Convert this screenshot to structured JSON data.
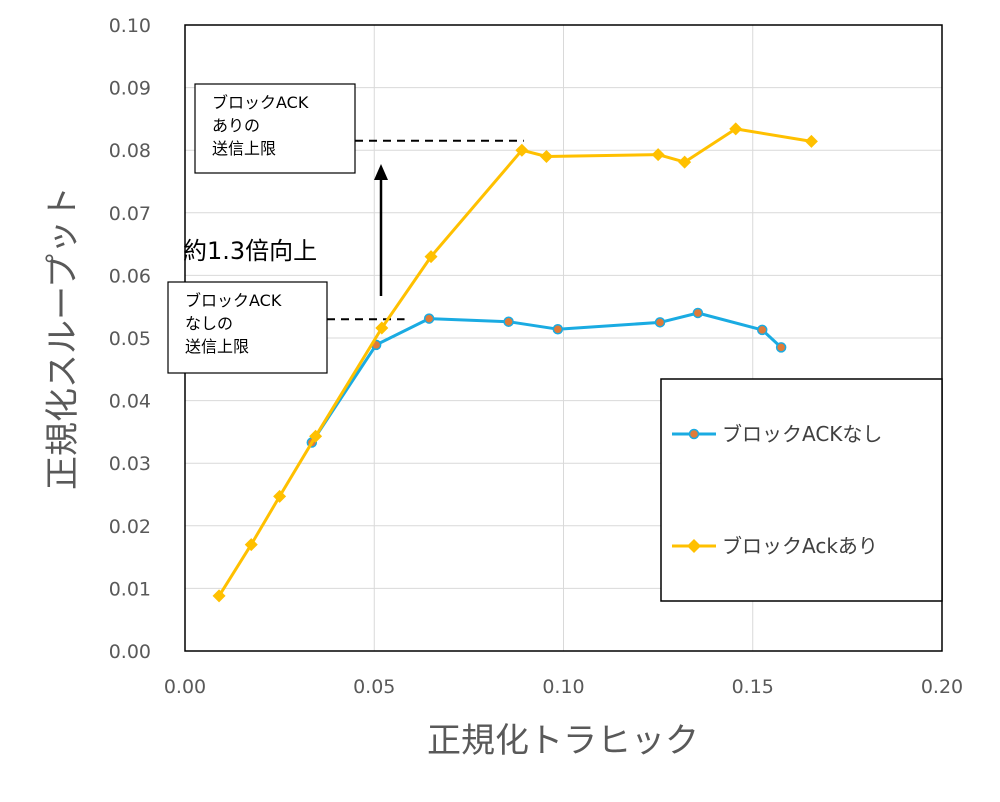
{
  "chart_data": {
    "type": "line",
    "xlabel": "正規化トラヒック",
    "ylabel": "正規化スループット",
    "xlim": [
      0,
      0.2
    ],
    "ylim": [
      0,
      0.1
    ],
    "x_ticks": [
      "0.00",
      "0.05",
      "0.10",
      "0.15",
      "0.20"
    ],
    "y_ticks": [
      "0.00",
      "0.01",
      "0.02",
      "0.03",
      "0.04",
      "0.05",
      "0.06",
      "0.07",
      "0.08",
      "0.09",
      "0.10"
    ],
    "grid": true,
    "legend_position": "right",
    "series": [
      {
        "name": "ブロックACKなし",
        "color": "#1AABE2",
        "marker_color": "#E07B39",
        "marker": "circle",
        "points": [
          [
            0.0335,
            0.0333
          ],
          [
            0.0505,
            0.0489
          ],
          [
            0.0645,
            0.0531
          ],
          [
            0.0855,
            0.0526
          ],
          [
            0.0985,
            0.0514
          ],
          [
            0.1255,
            0.0525
          ],
          [
            0.1355,
            0.054
          ],
          [
            0.1525,
            0.0513
          ],
          [
            0.1575,
            0.0485
          ]
        ]
      },
      {
        "name": "ブロックAckあり",
        "color": "#FFC000",
        "marker": "diamond",
        "points": [
          [
            0.009,
            0.0088
          ],
          [
            0.0175,
            0.017
          ],
          [
            0.025,
            0.0247
          ],
          [
            0.0345,
            0.0343
          ],
          [
            0.052,
            0.0516
          ],
          [
            0.065,
            0.063
          ],
          [
            0.089,
            0.08
          ],
          [
            0.0955,
            0.079
          ],
          [
            0.125,
            0.0793
          ],
          [
            0.132,
            0.0781
          ],
          [
            0.1455,
            0.0834
          ],
          [
            0.1655,
            0.0814
          ]
        ]
      }
    ],
    "annotations": {
      "box_upper": [
        "ブロックACK",
        "ありの",
        "送信上限"
      ],
      "box_lower": [
        "ブロックACK",
        "なしの",
        "送信上限"
      ],
      "arrow_label": "約1.3倍向上",
      "upper_limit_y": 0.0815,
      "lower_limit_y": 0.053,
      "upper_line_x_end": 0.0895,
      "lower_line_x_end": 0.058
    }
  }
}
